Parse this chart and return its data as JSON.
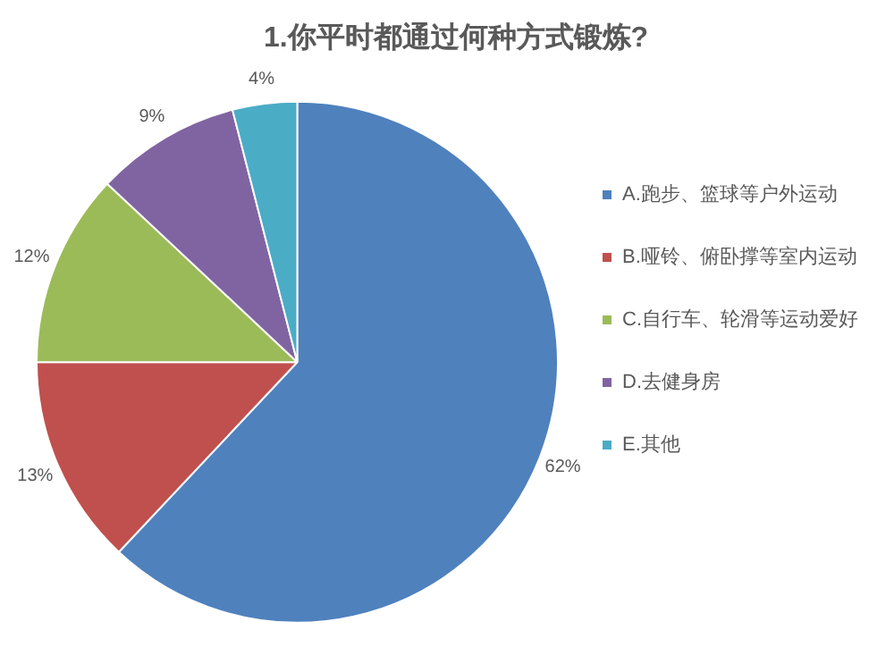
{
  "chart_data": {
    "type": "pie",
    "title": "1.你平时都通过何种方式锻炼?",
    "categories": [
      "A.跑步、篮球等户外运动",
      "B.哑铃、俯卧撑等室内运动",
      "C.自行车、轮滑等运动爱好",
      "D.去健身房",
      "E.其他"
    ],
    "values": [
      62,
      13,
      12,
      9,
      4
    ],
    "colors": [
      "#4f81bd",
      "#c0504d",
      "#9bbb59",
      "#8064a2",
      "#4bacc6"
    ],
    "value_labels": [
      "62%",
      "13%",
      "12%",
      "9%",
      "4%"
    ],
    "legend": "right"
  }
}
